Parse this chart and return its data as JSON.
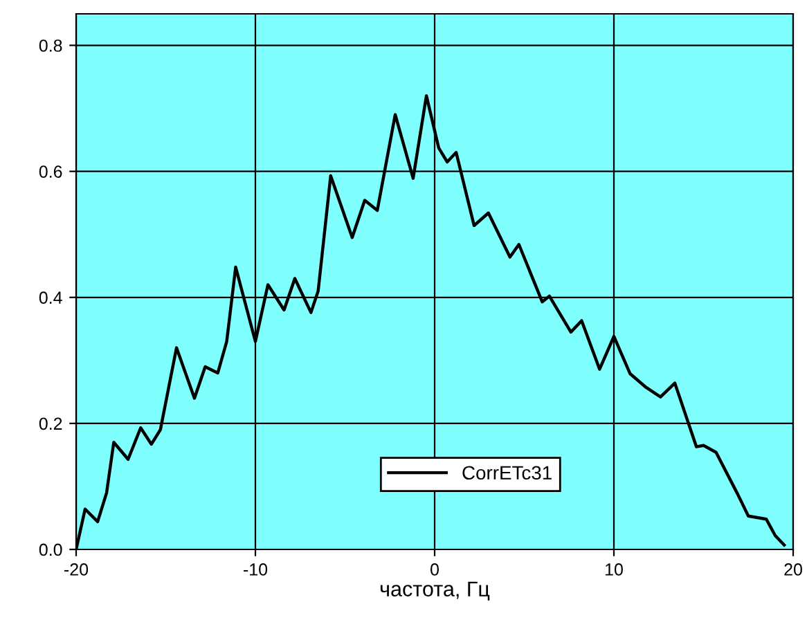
{
  "chart_data": {
    "type": "line",
    "xlabel": "частота, Гц",
    "xlim": [
      -20,
      20
    ],
    "ylim": [
      0,
      0.85
    ],
    "xticks": [
      -20,
      -10,
      0,
      10,
      20
    ],
    "yticks": [
      {
        "value": 0,
        "label": "0.0"
      },
      {
        "value": 0.2,
        "label": "0.2"
      },
      {
        "value": 0.4,
        "label": "0.4"
      },
      {
        "value": 0.6,
        "label": "0.6"
      },
      {
        "value": 0.8,
        "label": "0.8"
      }
    ],
    "grid": true,
    "legend": "bottom",
    "line_style": "solid",
    "marker": "none",
    "series": [
      {
        "name": "CorrETc31",
        "color": "#000000",
        "x": [
          -20,
          -19.5,
          -18.8,
          -18.3,
          -17.9,
          -17.1,
          -16.4,
          -15.8,
          -15.3,
          -14.4,
          -13.4,
          -12.8,
          -12.1,
          -11.6,
          -11.1,
          -10.0,
          -9.3,
          -8.4,
          -7.8,
          -6.9,
          -6.5,
          -5.8,
          -4.6,
          -3.9,
          -3.2,
          -2.2,
          -1.2,
          -0.46,
          0.23,
          0.7,
          1.2,
          2.2,
          3.0,
          4.2,
          4.7,
          6.0,
          6.4,
          7.6,
          8.2,
          9.2,
          10.0,
          10.9,
          11.8,
          12.6,
          13.4,
          14.6,
          15.0,
          15.7,
          16.9,
          17.5,
          18.5,
          19.0,
          19.5
        ],
        "values": [
          0,
          0.064,
          0.044,
          0.09,
          0.17,
          0.143,
          0.193,
          0.167,
          0.19,
          0.32,
          0.24,
          0.29,
          0.28,
          0.33,
          0.448,
          0.33,
          0.42,
          0.38,
          0.43,
          0.376,
          0.41,
          0.593,
          0.495,
          0.554,
          0.538,
          0.69,
          0.589,
          0.72,
          0.637,
          0.615,
          0.63,
          0.514,
          0.534,
          0.464,
          0.484,
          0.393,
          0.402,
          0.345,
          0.363,
          0.286,
          0.338,
          0.279,
          0.257,
          0.242,
          0.264,
          0.163,
          0.165,
          0.154,
          0.088,
          0.053,
          0.048,
          0.022,
          0.007
        ]
      }
    ]
  }
}
